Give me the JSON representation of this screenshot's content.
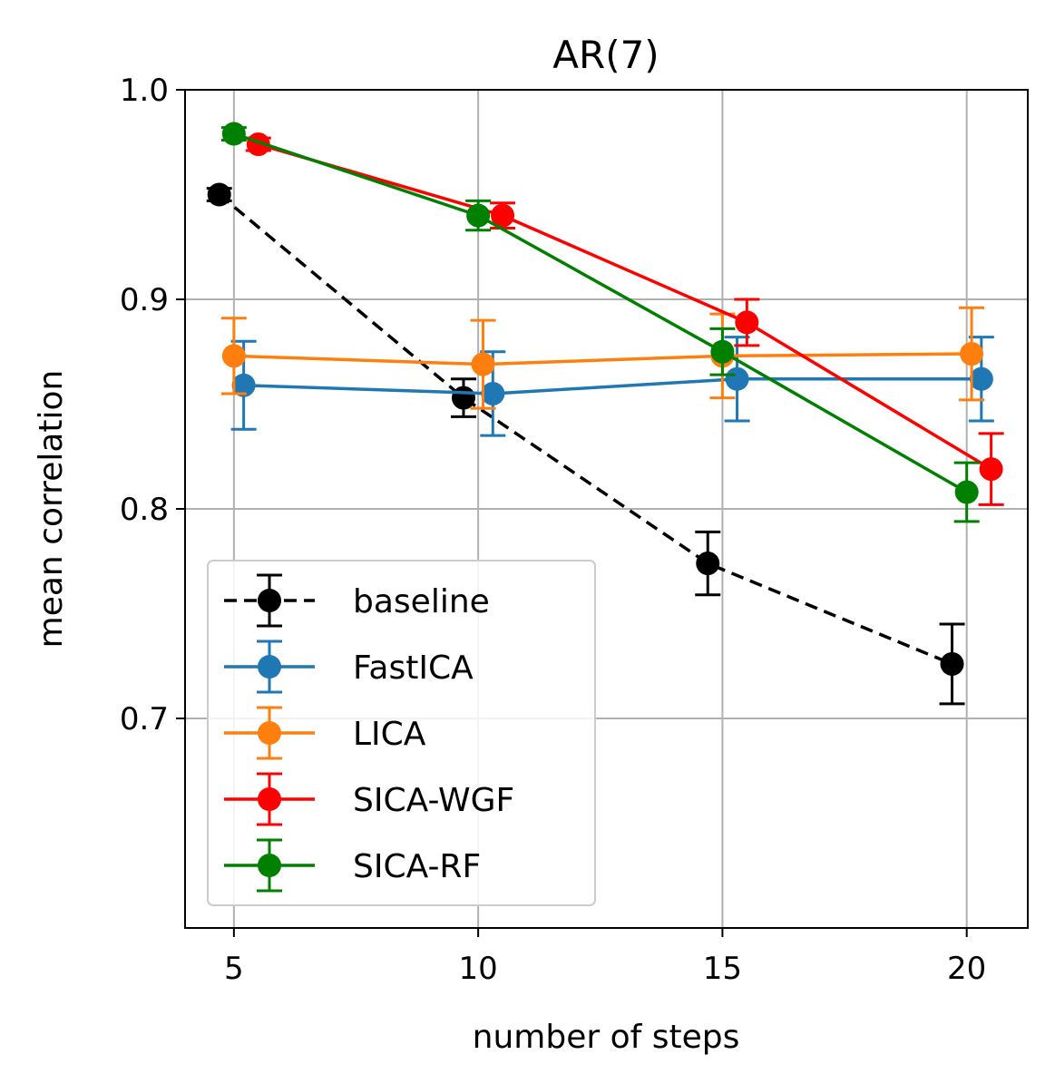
{
  "chart_data": {
    "type": "line",
    "title": "AR(7)",
    "xlabel": "number of steps",
    "ylabel": "mean correlation",
    "xlim": [
      4,
      21.25
    ],
    "ylim": [
      0.6,
      1.0
    ],
    "grid": true,
    "legend_position": "lower-left",
    "x_ticks": [
      5,
      10,
      15,
      20
    ],
    "x_tick_labels": [
      "5",
      "10",
      "15",
      "20"
    ],
    "y_ticks": [
      0.7,
      0.8,
      0.9,
      1.0
    ],
    "y_tick_labels": [
      "0.7",
      "0.8",
      "0.9",
      "1.0"
    ],
    "series": [
      {
        "name": "baseline",
        "label": "baseline",
        "color": "#000000",
        "dashed": true,
        "x": [
          4.7,
          9.7,
          14.7,
          19.7
        ],
        "values": [
          0.95,
          0.853,
          0.774,
          0.726
        ],
        "err": [
          0.003,
          0.009,
          0.015,
          0.019
        ]
      },
      {
        "name": "FastICA",
        "label": "FastICA",
        "color": "#1f77b4",
        "dashed": false,
        "x": [
          5.2,
          10.3,
          15.3,
          20.3
        ],
        "values": [
          0.859,
          0.855,
          0.862,
          0.862
        ],
        "err": [
          0.021,
          0.02,
          0.02,
          0.02
        ]
      },
      {
        "name": "LICA",
        "label": "LICA",
        "color": "#ff7f0e",
        "dashed": false,
        "x": [
          5.0,
          10.1,
          15.0,
          20.1
        ],
        "values": [
          0.873,
          0.869,
          0.873,
          0.874
        ],
        "err": [
          0.018,
          0.021,
          0.02,
          0.022
        ]
      },
      {
        "name": "SICA-WGF",
        "label": "SICA-WGF",
        "color": "#ff0000",
        "dashed": false,
        "x": [
          5.5,
          10.5,
          15.5,
          20.5
        ],
        "values": [
          0.974,
          0.94,
          0.889,
          0.819
        ],
        "err": [
          0.003,
          0.006,
          0.011,
          0.017
        ]
      },
      {
        "name": "SICA-RF",
        "label": "SICA-RF",
        "color": "#008000",
        "dashed": false,
        "x": [
          5.0,
          10.0,
          15.0,
          20.0
        ],
        "values": [
          0.979,
          0.94,
          0.875,
          0.808
        ],
        "err": [
          0.003,
          0.007,
          0.011,
          0.014
        ]
      }
    ]
  }
}
